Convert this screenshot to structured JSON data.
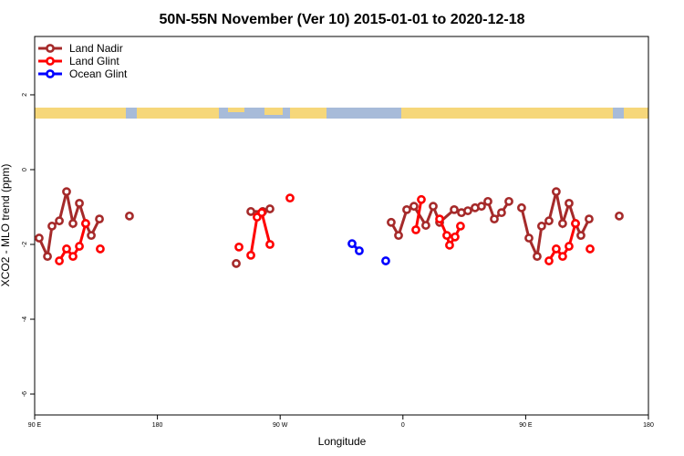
{
  "chart_data": {
    "type": "line",
    "title": "50N-55N November (Ver 10)   2015-01-01 to 2020-12-18",
    "x_label": "Longitude",
    "y_label": "XCO2 - MLO trend (ppm)",
    "xlim": [
      90,
      540
    ],
    "ylim": [
      -6.56,
      3.56
    ],
    "xticks": [
      {
        "value": 90,
        "label": "90 E"
      },
      {
        "value": 180,
        "label": "180"
      },
      {
        "value": 270,
        "label": "90 W"
      },
      {
        "value": 360,
        "label": "0"
      },
      {
        "value": 450,
        "label": "90 E"
      },
      {
        "value": 540,
        "label": "180"
      }
    ],
    "yticks": [
      2,
      0,
      -2,
      -4,
      -6
    ],
    "legend": "top-left",
    "series": [
      {
        "name": "Land Nadir",
        "color": "#a52a2a",
        "x": [
          93.3,
          99.4,
          102.7,
          108.1,
          113.4,
          118.1,
          122.8,
          127.4,
          131.5,
          137.5,
          null,
          159.5,
          null,
          237.8,
          null,
          248.5,
          257.2,
          262.5,
          null,
          351.4,
          356.8,
          362.8,
          368.1,
          376.8,
          382.2,
          386.9,
          397.6,
          402.9,
          407.6,
          412.9,
          417.6,
          422.3,
          427.0,
          432.3,
          437.7,
          null,
          447.0,
          452.4,
          458.4,
          461.7,
          467.1,
          472.4,
          477.1,
          481.8,
          486.5,
          490.5,
          496.5,
          null,
          518.6
        ],
        "values": [
          -1.83,
          -2.32,
          -1.51,
          -1.37,
          -0.59,
          -1.44,
          -0.9,
          -1.44,
          -1.76,
          -1.32,
          null,
          -1.24,
          null,
          -2.51,
          null,
          -1.12,
          -1.12,
          -1.05,
          null,
          -1.41,
          -1.76,
          -1.07,
          -0.98,
          -1.49,
          -0.98,
          -1.41,
          -1.07,
          -1.15,
          -1.1,
          -1.02,
          -0.98,
          -0.85,
          -1.32,
          -1.15,
          -0.85,
          null,
          -1.02,
          -1.83,
          -2.32,
          -1.51,
          -1.37,
          -0.59,
          -1.44,
          -0.9,
          -1.44,
          -1.76,
          -1.32,
          null,
          -1.24
        ]
      },
      {
        "name": "Land Glint",
        "color": "#ff0000",
        "x": [
          108.1,
          113.4,
          118.1,
          122.8,
          127.4,
          null,
          138.1,
          null,
          239.8,
          null,
          248.5,
          253.1,
          256.5,
          262.5,
          null,
          277.2,
          null,
          369.5,
          373.5,
          null,
          386.9,
          392.2,
          394.2,
          398.2,
          402.2,
          null,
          467.1,
          472.4,
          477.1,
          481.8,
          486.5,
          null,
          497.2
        ],
        "values": [
          -2.44,
          -2.12,
          -2.32,
          -2.05,
          -1.44,
          null,
          -2.12,
          null,
          -2.07,
          null,
          -2.29,
          -1.27,
          -1.15,
          -2.0,
          null,
          -0.76,
          null,
          -1.61,
          -0.8,
          null,
          -1.32,
          -1.76,
          -2.02,
          -1.8,
          -1.51,
          null,
          -2.44,
          -2.12,
          -2.32,
          -2.05,
          -1.44,
          null,
          -2.12
        ]
      },
      {
        "name": "Ocean Glint",
        "color": "#0000ff",
        "x": [
          322.7,
          328.0,
          null,
          347.4
        ],
        "values": [
          -1.98,
          -2.17,
          null,
          -2.44
        ]
      }
    ]
  }
}
